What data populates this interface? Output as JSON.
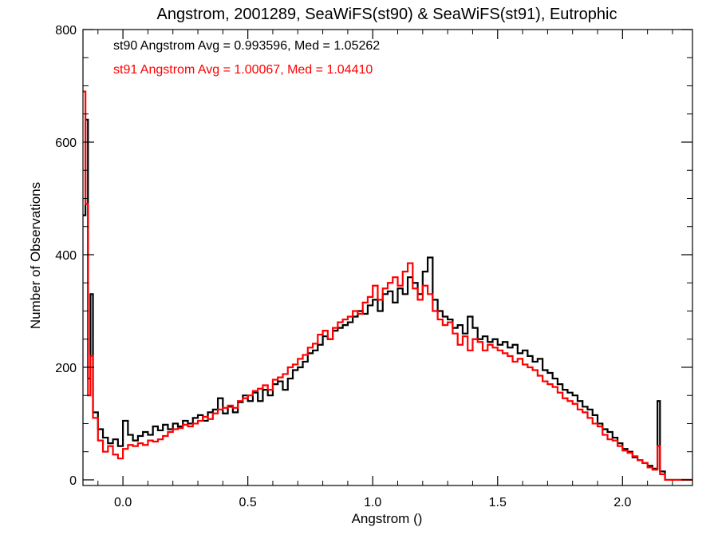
{
  "chart_data": {
    "type": "line",
    "title": "Angstrom, 2001289, SeaWiFS(st90) & SeaWiFS(st91), Eutrophic",
    "xlabel": "Angstrom ()",
    "ylabel": "Number of Observations",
    "xlim": [
      -0.16,
      2.28
    ],
    "ylim": [
      -10,
      800
    ],
    "xticks": [
      0.0,
      0.5,
      1.0,
      1.5,
      2.0
    ],
    "xtick_labels": [
      "0.0",
      "0.5",
      "1.0",
      "1.5",
      "2.0"
    ],
    "yticks": [
      0,
      200,
      400,
      600,
      800
    ],
    "ytick_labels": [
      "0",
      "200",
      "400",
      "600",
      "800"
    ],
    "grid": false,
    "annotations": [
      {
        "text": "st90 Angstrom Avg = 0.993596, Med = 1.05262",
        "color": "#000000"
      },
      {
        "text": "st91 Angstrom Avg = 1.00067, Med = 1.04410",
        "color": "#ff0000"
      }
    ],
    "series": [
      {
        "color": "#000000",
        "step": "post",
        "points": [
          [
            -0.16,
            470
          ],
          [
            -0.15,
            640
          ],
          [
            -0.14,
            180
          ],
          [
            -0.13,
            330
          ],
          [
            -0.12,
            120
          ],
          [
            -0.1,
            90
          ],
          [
            -0.08,
            75
          ],
          [
            -0.06,
            65
          ],
          [
            -0.04,
            72
          ],
          [
            -0.02,
            60
          ],
          [
            0.0,
            105
          ],
          [
            0.02,
            80
          ],
          [
            0.04,
            70
          ],
          [
            0.06,
            78
          ],
          [
            0.08,
            85
          ],
          [
            0.1,
            80
          ],
          [
            0.12,
            95
          ],
          [
            0.14,
            88
          ],
          [
            0.16,
            98
          ],
          [
            0.18,
            90
          ],
          [
            0.2,
            100
          ],
          [
            0.22,
            95
          ],
          [
            0.24,
            105
          ],
          [
            0.26,
            100
          ],
          [
            0.28,
            110
          ],
          [
            0.3,
            115
          ],
          [
            0.32,
            105
          ],
          [
            0.34,
            120
          ],
          [
            0.36,
            125
          ],
          [
            0.38,
            145
          ],
          [
            0.4,
            118
          ],
          [
            0.42,
            130
          ],
          [
            0.44,
            120
          ],
          [
            0.46,
            138
          ],
          [
            0.48,
            150
          ],
          [
            0.5,
            140
          ],
          [
            0.52,
            155
          ],
          [
            0.54,
            140
          ],
          [
            0.56,
            160
          ],
          [
            0.58,
            150
          ],
          [
            0.6,
            170
          ],
          [
            0.62,
            175
          ],
          [
            0.64,
            160
          ],
          [
            0.66,
            180
          ],
          [
            0.68,
            195
          ],
          [
            0.7,
            200
          ],
          [
            0.72,
            210
          ],
          [
            0.74,
            225
          ],
          [
            0.76,
            230
          ],
          [
            0.78,
            240
          ],
          [
            0.8,
            255
          ],
          [
            0.82,
            250
          ],
          [
            0.84,
            265
          ],
          [
            0.86,
            270
          ],
          [
            0.88,
            275
          ],
          [
            0.9,
            280
          ],
          [
            0.92,
            290
          ],
          [
            0.94,
            300
          ],
          [
            0.96,
            295
          ],
          [
            0.98,
            310
          ],
          [
            1.0,
            320
          ],
          [
            1.02,
            300
          ],
          [
            1.04,
            330
          ],
          [
            1.06,
            335
          ],
          [
            1.08,
            315
          ],
          [
            1.1,
            340
          ],
          [
            1.12,
            330
          ],
          [
            1.14,
            360
          ],
          [
            1.16,
            350
          ],
          [
            1.18,
            330
          ],
          [
            1.2,
            370
          ],
          [
            1.22,
            395
          ],
          [
            1.24,
            320
          ],
          [
            1.26,
            300
          ],
          [
            1.28,
            290
          ],
          [
            1.3,
            285
          ],
          [
            1.32,
            270
          ],
          [
            1.34,
            275
          ],
          [
            1.36,
            260
          ],
          [
            1.38,
            290
          ],
          [
            1.4,
            270
          ],
          [
            1.42,
            250
          ],
          [
            1.44,
            255
          ],
          [
            1.46,
            245
          ],
          [
            1.48,
            250
          ],
          [
            1.5,
            240
          ],
          [
            1.52,
            245
          ],
          [
            1.54,
            235
          ],
          [
            1.56,
            240
          ],
          [
            1.58,
            225
          ],
          [
            1.6,
            230
          ],
          [
            1.62,
            220
          ],
          [
            1.64,
            210
          ],
          [
            1.66,
            215
          ],
          [
            1.68,
            195
          ],
          [
            1.7,
            190
          ],
          [
            1.72,
            180
          ],
          [
            1.74,
            170
          ],
          [
            1.76,
            160
          ],
          [
            1.78,
            155
          ],
          [
            1.8,
            150
          ],
          [
            1.82,
            140
          ],
          [
            1.84,
            130
          ],
          [
            1.86,
            125
          ],
          [
            1.88,
            115
          ],
          [
            1.9,
            100
          ],
          [
            1.92,
            90
          ],
          [
            1.94,
            85
          ],
          [
            1.96,
            75
          ],
          [
            1.98,
            65
          ],
          [
            2.0,
            55
          ],
          [
            2.02,
            50
          ],
          [
            2.04,
            40
          ],
          [
            2.06,
            35
          ],
          [
            2.08,
            30
          ],
          [
            2.1,
            25
          ],
          [
            2.12,
            20
          ],
          [
            2.14,
            140
          ],
          [
            2.15,
            15
          ],
          [
            2.17,
            0
          ]
        ]
      },
      {
        "color": "#ff0000",
        "step": "post",
        "points": [
          [
            -0.16,
            690
          ],
          [
            -0.15,
            490
          ],
          [
            -0.14,
            150
          ],
          [
            -0.13,
            220
          ],
          [
            -0.12,
            110
          ],
          [
            -0.1,
            70
          ],
          [
            -0.08,
            50
          ],
          [
            -0.06,
            60
          ],
          [
            -0.04,
            45
          ],
          [
            -0.02,
            38
          ],
          [
            0.0,
            55
          ],
          [
            0.02,
            62
          ],
          [
            0.04,
            60
          ],
          [
            0.06,
            65
          ],
          [
            0.08,
            62
          ],
          [
            0.1,
            70
          ],
          [
            0.12,
            68
          ],
          [
            0.14,
            72
          ],
          [
            0.16,
            78
          ],
          [
            0.18,
            85
          ],
          [
            0.2,
            90
          ],
          [
            0.22,
            92
          ],
          [
            0.24,
            98
          ],
          [
            0.26,
            95
          ],
          [
            0.28,
            100
          ],
          [
            0.3,
            105
          ],
          [
            0.32,
            112
          ],
          [
            0.34,
            108
          ],
          [
            0.36,
            118
          ],
          [
            0.38,
            125
          ],
          [
            0.4,
            128
          ],
          [
            0.42,
            132
          ],
          [
            0.44,
            128
          ],
          [
            0.46,
            140
          ],
          [
            0.48,
            145
          ],
          [
            0.5,
            150
          ],
          [
            0.52,
            158
          ],
          [
            0.54,
            162
          ],
          [
            0.56,
            168
          ],
          [
            0.58,
            160
          ],
          [
            0.6,
            178
          ],
          [
            0.62,
            182
          ],
          [
            0.64,
            188
          ],
          [
            0.66,
            200
          ],
          [
            0.68,
            205
          ],
          [
            0.7,
            215
          ],
          [
            0.72,
            222
          ],
          [
            0.74,
            235
          ],
          [
            0.76,
            242
          ],
          [
            0.78,
            258
          ],
          [
            0.8,
            265
          ],
          [
            0.82,
            250
          ],
          [
            0.84,
            270
          ],
          [
            0.86,
            280
          ],
          [
            0.88,
            285
          ],
          [
            0.9,
            290
          ],
          [
            0.92,
            300
          ],
          [
            0.94,
            295
          ],
          [
            0.96,
            315
          ],
          [
            0.98,
            325
          ],
          [
            1.0,
            345
          ],
          [
            1.02,
            320
          ],
          [
            1.04,
            340
          ],
          [
            1.06,
            350
          ],
          [
            1.08,
            360
          ],
          [
            1.1,
            345
          ],
          [
            1.12,
            370
          ],
          [
            1.14,
            385
          ],
          [
            1.16,
            340
          ],
          [
            1.18,
            320
          ],
          [
            1.2,
            345
          ],
          [
            1.22,
            330
          ],
          [
            1.24,
            300
          ],
          [
            1.26,
            285
          ],
          [
            1.28,
            275
          ],
          [
            1.3,
            280
          ],
          [
            1.32,
            260
          ],
          [
            1.34,
            240
          ],
          [
            1.36,
            255
          ],
          [
            1.38,
            230
          ],
          [
            1.4,
            250
          ],
          [
            1.42,
            245
          ],
          [
            1.44,
            230
          ],
          [
            1.46,
            240
          ],
          [
            1.48,
            235
          ],
          [
            1.5,
            230
          ],
          [
            1.52,
            225
          ],
          [
            1.54,
            220
          ],
          [
            1.56,
            210
          ],
          [
            1.58,
            215
          ],
          [
            1.6,
            205
          ],
          [
            1.62,
            200
          ],
          [
            1.64,
            195
          ],
          [
            1.66,
            185
          ],
          [
            1.68,
            175
          ],
          [
            1.7,
            170
          ],
          [
            1.72,
            165
          ],
          [
            1.74,
            155
          ],
          [
            1.76,
            145
          ],
          [
            1.78,
            140
          ],
          [
            1.8,
            135
          ],
          [
            1.82,
            125
          ],
          [
            1.84,
            120
          ],
          [
            1.86,
            110
          ],
          [
            1.88,
            100
          ],
          [
            1.9,
            95
          ],
          [
            1.92,
            80
          ],
          [
            1.94,
            72
          ],
          [
            1.96,
            70
          ],
          [
            1.98,
            60
          ],
          [
            2.0,
            52
          ],
          [
            2.02,
            48
          ],
          [
            2.04,
            42
          ],
          [
            2.06,
            35
          ],
          [
            2.08,
            30
          ],
          [
            2.1,
            22
          ],
          [
            2.12,
            18
          ],
          [
            2.14,
            60
          ],
          [
            2.15,
            10
          ],
          [
            2.17,
            0
          ]
        ]
      }
    ]
  }
}
